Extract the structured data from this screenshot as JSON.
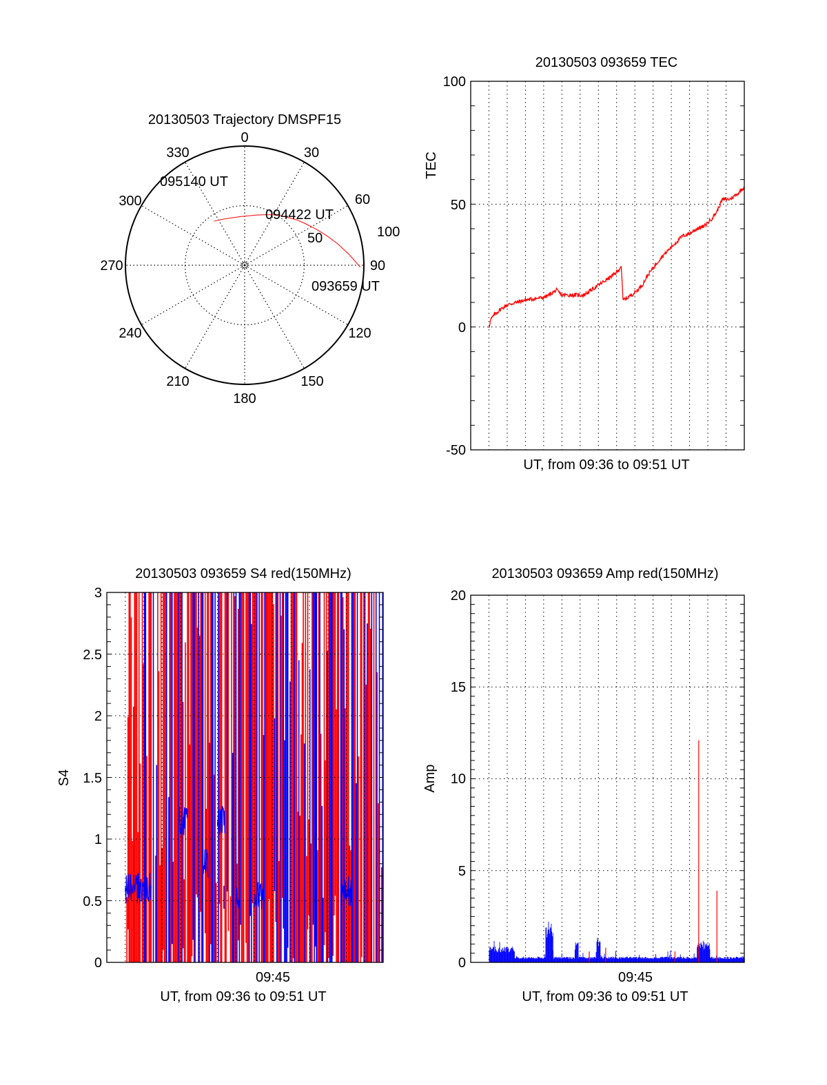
{
  "chart_data": [
    {
      "id": "trajectory",
      "type": "polar",
      "title": "20130503 Trajectory DMSPF15",
      "angle_labels": [
        "0",
        "30",
        "60",
        "90",
        "120",
        "150",
        "180",
        "210",
        "240",
        "270",
        "300",
        "330"
      ],
      "radial_labels": [
        "50",
        "100"
      ],
      "radial_range": [
        0,
        100
      ],
      "grid": true,
      "line_color": "#ff0000",
      "track": {
        "azimuth_deg": [
          91,
          84,
          77,
          70,
          63,
          56,
          49,
          42,
          35,
          28,
          20,
          12,
          4,
          356,
          348,
          339,
          331,
          325
        ],
        "elevation_like": [
          3,
          12,
          20,
          27,
          33,
          38,
          42,
          46,
          49,
          52,
          55,
          57,
          58.5,
          59,
          59,
          58,
          56.5,
          55
        ]
      },
      "annotations": [
        "095140 UT",
        "094422 UT",
        "093659 UT"
      ]
    },
    {
      "id": "tec",
      "type": "line",
      "title": "20130503 093659 TEC",
      "xlabel": "UT, from 09:36 to 09:51 UT",
      "ylabel": "TEC",
      "ylim": [
        -50,
        100
      ],
      "yticks": [
        "100",
        "50",
        "0",
        "-50"
      ],
      "xlim_minutes": [
        0,
        15
      ],
      "grid": true,
      "line_color": "#ff0000",
      "series": [
        {
          "name": "TEC",
          "x_minutes": [
            1.0,
            1.1,
            1.3,
            1.6,
            2.0,
            2.5,
            3.0,
            3.5,
            4.0,
            4.3,
            4.7,
            5.0,
            5.4,
            5.8,
            6.2,
            6.6,
            7.0,
            7.4,
            7.8,
            8.1,
            8.25,
            8.35,
            8.6,
            9.0,
            9.4,
            9.7,
            10.0,
            10.4,
            10.8,
            11.2,
            11.6,
            12.0,
            12.4,
            12.8,
            13.2,
            13.5,
            13.8,
            14.2,
            14.6,
            15.0
          ],
          "y": [
            0,
            3,
            5,
            7,
            9,
            10,
            11,
            11.5,
            12,
            13,
            15,
            13,
            13,
            13,
            13,
            15,
            17,
            19,
            21,
            23,
            25,
            11,
            12,
            14,
            17,
            21,
            24,
            28,
            31,
            34,
            37,
            38,
            40,
            41,
            44,
            47,
            52,
            52,
            54,
            57
          ]
        }
      ]
    },
    {
      "id": "s4",
      "type": "bar",
      "title": "20130503 093659 S4 red(150MHz)",
      "xlabel": "UT, from 09:36 to 09:51 UT",
      "ylabel": "S4",
      "xtick_label": "09:45",
      "ylim": [
        0,
        3
      ],
      "yticks": [
        "3",
        "2.5",
        "2",
        "1.5",
        "1",
        "0.5",
        "0"
      ],
      "xlim_minutes": [
        0,
        15
      ],
      "grid": true,
      "series": [
        {
          "name": "red",
          "color": "#ff0000",
          "note": "dense saturated vertical spikes 0-3 across 09:37-09:51"
        },
        {
          "name": "blue",
          "color": "#0000ff",
          "baseline_segments": [
            {
              "from_minute": 1.0,
              "to_minute": 2.4,
              "level": 0.6
            },
            {
              "from_minute": 3.9,
              "to_minute": 4.4,
              "level": 1.15
            },
            {
              "from_minute": 6.0,
              "to_minute": 6.4,
              "level": 1.15
            },
            {
              "from_minute": 5.2,
              "to_minute": 5.5,
              "level": 0.8
            },
            {
              "from_minute": 7.0,
              "to_minute": 7.2,
              "level": 0.5
            },
            {
              "from_minute": 8.0,
              "to_minute": 8.5,
              "level": 0.55
            },
            {
              "from_minute": 12.7,
              "to_minute": 13.3,
              "level": 0.58
            }
          ]
        }
      ]
    },
    {
      "id": "amp",
      "type": "bar",
      "title": "20130503 093659 Amp red(150MHz)",
      "xlabel": "UT, from 09:36 to 09:51 UT",
      "ylabel": "Amp",
      "xtick_label": "09:45",
      "ylim": [
        0,
        20
      ],
      "yticks": [
        "20",
        "15",
        "10",
        "5",
        "0"
      ],
      "xlim_minutes": [
        0,
        15
      ],
      "grid": true,
      "series": [
        {
          "name": "blue",
          "color": "#0000ff",
          "segments": [
            {
              "from_minute": 1.0,
              "to_minute": 2.4,
              "level": 0.7
            },
            {
              "from_minute": 2.4,
              "to_minute": 4.1,
              "level": 0.25
            },
            {
              "from_minute": 4.1,
              "to_minute": 4.5,
              "level": 1.8
            },
            {
              "from_minute": 4.5,
              "to_minute": 5.7,
              "level": 0.25
            },
            {
              "from_minute": 5.7,
              "to_minute": 5.9,
              "level": 0.9
            },
            {
              "from_minute": 5.9,
              "to_minute": 6.9,
              "level": 0.25
            },
            {
              "from_minute": 6.9,
              "to_minute": 7.1,
              "level": 1.1
            },
            {
              "from_minute": 7.1,
              "to_minute": 12.4,
              "level": 0.25
            },
            {
              "from_minute": 12.4,
              "to_minute": 13.1,
              "level": 0.9
            },
            {
              "from_minute": 13.1,
              "to_minute": 15.0,
              "level": 0.25
            }
          ]
        },
        {
          "name": "red",
          "color": "#ff0000",
          "spikes": [
            {
              "minute": 12.5,
              "value": 12.1
            },
            {
              "minute": 13.5,
              "value": 3.9
            },
            {
              "minute": 7.4,
              "value": 0.8
            },
            {
              "minute": 6.5,
              "value": 0.6
            },
            {
              "minute": 11.2,
              "value": 0.6
            }
          ]
        }
      ]
    }
  ]
}
